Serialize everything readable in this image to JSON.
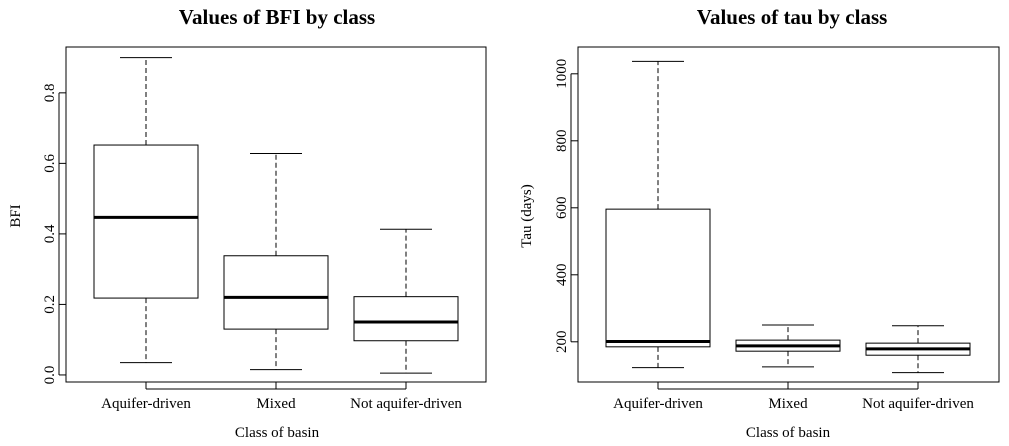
{
  "chart_data": [
    {
      "type": "boxplot",
      "title": "Values of BFI by class",
      "xlabel": "Class of basin",
      "ylabel": "BFI",
      "ylim": [
        -0.02,
        0.93
      ],
      "yticks": [
        0.0,
        0.2,
        0.4,
        0.6,
        0.8
      ],
      "ytick_labels": [
        "0.0",
        "0.2",
        "0.4",
        "0.6",
        "0.8"
      ],
      "categories": [
        "Aquifer-driven",
        "Mixed",
        "Not aquifer-driven"
      ],
      "boxes": [
        {
          "whisker_low": 0.035,
          "q1": 0.218,
          "median": 0.447,
          "q3": 0.652,
          "whisker_high": 0.9
        },
        {
          "whisker_low": 0.015,
          "q1": 0.13,
          "median": 0.22,
          "q3": 0.338,
          "whisker_high": 0.628
        },
        {
          "whisker_low": 0.005,
          "q1": 0.097,
          "median": 0.15,
          "q3": 0.222,
          "whisker_high": 0.413
        }
      ]
    },
    {
      "type": "boxplot",
      "title": "Values of tau by class",
      "xlabel": "Class of basin",
      "ylabel": "Tau (days)",
      "ylim": [
        80,
        1080
      ],
      "yticks": [
        200,
        400,
        600,
        800,
        1000
      ],
      "ytick_labels": [
        "200",
        "400",
        "600",
        "800",
        "1000"
      ],
      "categories": [
        "Aquifer-driven",
        "Mixed",
        "Not aquifer-driven"
      ],
      "boxes": [
        {
          "whisker_low": 123,
          "q1": 185,
          "median": 201,
          "q3": 596,
          "whisker_high": 1037
        },
        {
          "whisker_low": 125,
          "q1": 172,
          "median": 188,
          "q3": 205,
          "whisker_high": 250
        },
        {
          "whisker_low": 108,
          "q1": 160,
          "median": 179,
          "q3": 196,
          "whisker_high": 248
        }
      ]
    }
  ]
}
